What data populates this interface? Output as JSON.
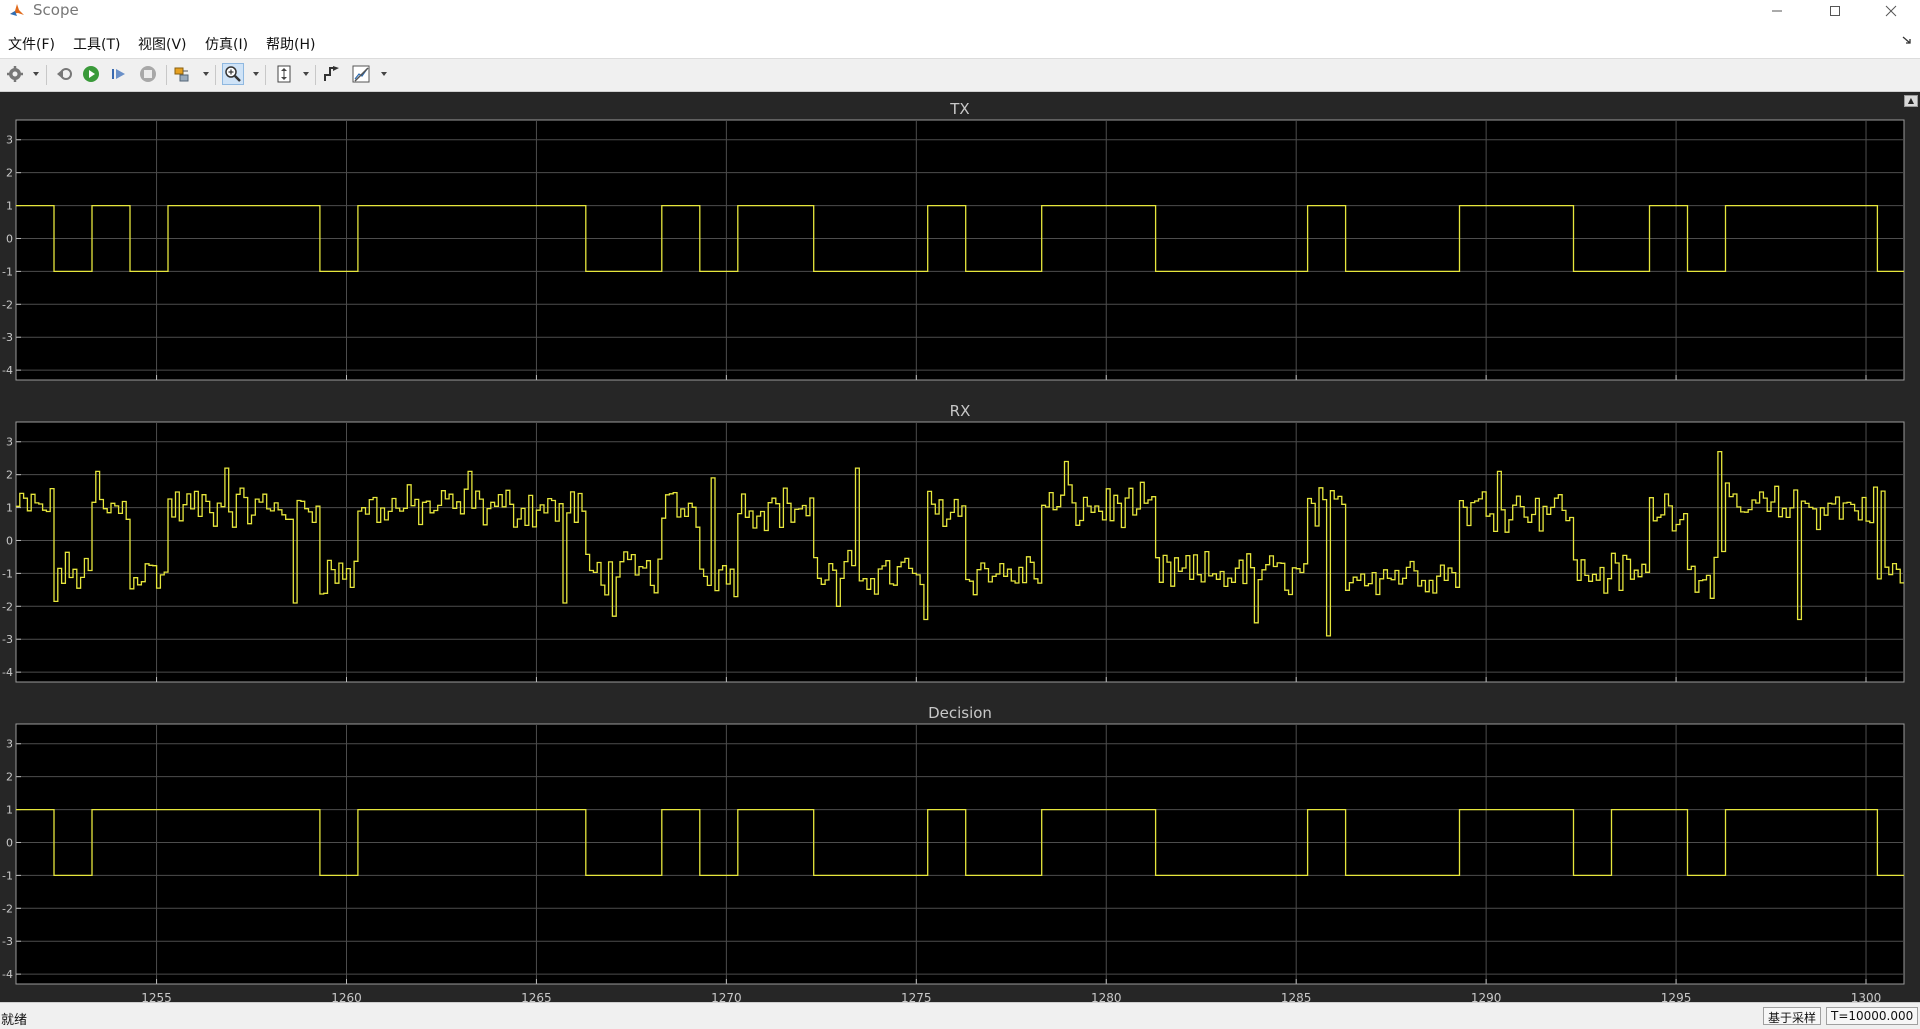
{
  "window": {
    "title": "Scope"
  },
  "menu": {
    "items": [
      "文件(F)",
      "工具(T)",
      "视图(V)",
      "仿真(I)",
      "帮助(H)"
    ]
  },
  "status": {
    "text": "就绪",
    "mode": "基于采样",
    "time": "T=10000.000"
  },
  "colors": {
    "trace": "#e6e63c",
    "axes_bg": "#000000",
    "figure_bg": "#262626",
    "grid": "#4d4d4d",
    "label": "#c8c8c8"
  },
  "chart_data": [
    {
      "type": "line",
      "title": "TX",
      "style": "stairs",
      "xlim": [
        1251.3,
        1301.0
      ],
      "ylim": [
        -4.3,
        3.6
      ],
      "grid": true,
      "xticks": [
        1255,
        1260,
        1265,
        1270,
        1275,
        1280,
        1285,
        1290,
        1295,
        1300
      ],
      "yticks": [
        3,
        2,
        1,
        0,
        -1,
        -2,
        -3,
        -4
      ],
      "show_xticklabels": false,
      "series": [
        {
          "values": [
            1,
            -1,
            1,
            -1,
            1,
            1,
            1,
            1,
            -1,
            1,
            1,
            1,
            1,
            1,
            1,
            -1,
            -1,
            1,
            -1,
            1,
            1,
            -1,
            -1,
            -1,
            1,
            -1,
            -1,
            1,
            1,
            1,
            -1,
            -1,
            -1,
            -1,
            1,
            -1,
            -1,
            -1,
            1,
            1,
            1,
            -1,
            -1,
            1,
            -1,
            1,
            1,
            1,
            1,
            -1,
            1
          ],
          "x0": 1251.3,
          "dx": 1.0
        }
      ]
    },
    {
      "type": "line",
      "title": "RX",
      "style": "stairs",
      "xlim": [
        1251.3,
        1301.0
      ],
      "ylim": [
        -4.3,
        3.6
      ],
      "grid": true,
      "xticks": [
        1255,
        1260,
        1265,
        1270,
        1275,
        1280,
        1285,
        1290,
        1295,
        1300
      ],
      "yticks": [
        3,
        2,
        1,
        0,
        -1,
        -2,
        -3,
        -4
      ],
      "show_xticklabels": false,
      "noise_amplitude": 0.5,
      "noise_spikes": [
        {
          "x": 1252.3,
          "y": -1.85
        },
        {
          "x": 1253.4,
          "y": 2.1
        },
        {
          "x": 1256.8,
          "y": 2.2
        },
        {
          "x": 1258.6,
          "y": -1.9
        },
        {
          "x": 1263.2,
          "y": 2.1
        },
        {
          "x": 1265.7,
          "y": -1.9
        },
        {
          "x": 1267.0,
          "y": -2.3
        },
        {
          "x": 1269.6,
          "y": 1.9
        },
        {
          "x": 1272.9,
          "y": -2.0
        },
        {
          "x": 1273.4,
          "y": 2.2
        },
        {
          "x": 1275.2,
          "y": -2.4
        },
        {
          "x": 1278.9,
          "y": 2.4
        },
        {
          "x": 1283.9,
          "y": -2.5
        },
        {
          "x": 1285.8,
          "y": -2.9
        },
        {
          "x": 1290.3,
          "y": 2.1
        },
        {
          "x": 1296.1,
          "y": 2.7
        },
        {
          "x": 1298.2,
          "y": -2.4
        },
        {
          "x": 1300.4,
          "y": 1.5
        }
      ],
      "series": [
        {
          "values": [
            1,
            -1,
            1,
            -1,
            1,
            1,
            1,
            1,
            -1,
            1,
            1,
            1,
            1,
            1,
            1,
            -1,
            -1,
            1,
            -1,
            1,
            1,
            -1,
            -1,
            -1,
            1,
            -1,
            -1,
            1,
            1,
            1,
            -1,
            -1,
            -1,
            -1,
            1,
            -1,
            -1,
            -1,
            1,
            1,
            1,
            -1,
            -1,
            1,
            -1,
            1,
            1,
            1,
            1,
            -1,
            1
          ],
          "x0": 1251.3,
          "dx": 1.0
        }
      ]
    },
    {
      "type": "line",
      "title": "Decision",
      "style": "stairs",
      "xlim": [
        1251.3,
        1301.0
      ],
      "ylim": [
        -4.3,
        3.6
      ],
      "grid": true,
      "xticks": [
        1255,
        1260,
        1265,
        1270,
        1275,
        1280,
        1285,
        1290,
        1295,
        1300
      ],
      "yticks": [
        3,
        2,
        1,
        0,
        -1,
        -2,
        -3,
        -4
      ],
      "show_xticklabels": true,
      "series": [
        {
          "values": [
            1,
            -1,
            1,
            1,
            1,
            1,
            1,
            1,
            -1,
            1,
            1,
            1,
            1,
            1,
            1,
            -1,
            -1,
            1,
            -1,
            1,
            1,
            -1,
            -1,
            -1,
            1,
            -1,
            -1,
            1,
            1,
            1,
            -1,
            -1,
            -1,
            -1,
            1,
            -1,
            -1,
            -1,
            1,
            1,
            1,
            -1,
            1,
            1,
            -1,
            1,
            1,
            1,
            1,
            -1,
            1
          ],
          "x0": 1251.3,
          "dx": 1.0
        }
      ]
    }
  ]
}
